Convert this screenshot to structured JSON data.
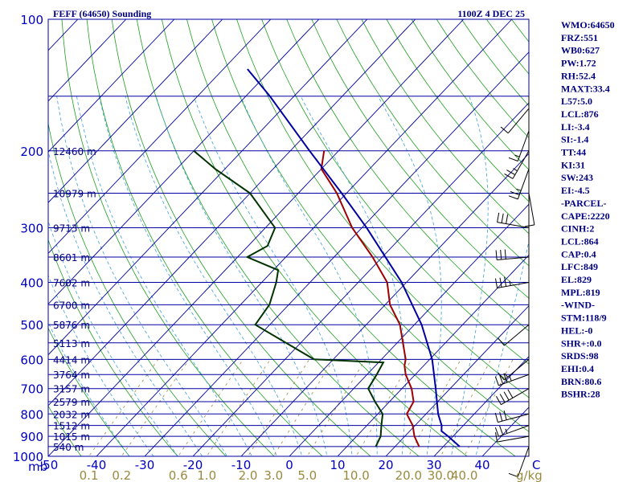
{
  "header": {
    "station": "FEFF (64650) Sounding",
    "time": "1100Z  4 DEC 25"
  },
  "indices": [
    "WMO:64650",
    "FRZ:551",
    "WB0:627",
    "PW:1.72",
    "RH:52.4",
    "MAXT:33.4",
    "L57:5.0",
    "LCL:876",
    "LI:-3.4",
    "SI:-1.4",
    "TT:44",
    "KI:31",
    "SW:243",
    "EI:-4.5",
    "-PARCEL-",
    "CAPE:2220",
    "CINH:2",
    "LCL:864",
    "CAP:0.4",
    "LFC:849",
    "EL:829",
    "MPL:819",
    "-WIND-",
    "STM:118/9",
    "HEL:-0",
    "SHR+:0.0",
    "SRDS:98",
    "EHI:0.4",
    "BRN:80.6",
    "BSHR:28"
  ],
  "chart_data": {
    "type": "line",
    "title": "FEFF (64650) Sounding",
    "pressure_axis": {
      "unit": "mb",
      "range": [
        1000,
        100
      ],
      "scale": "log",
      "labeled_levels": [
        100,
        200,
        300,
        400,
        500,
        600,
        700,
        800,
        900,
        1000
      ]
    },
    "temperature_axis": {
      "unit": "C",
      "ticks": [
        -50,
        -40,
        -30,
        -20,
        -10,
        0,
        10,
        20,
        30,
        40
      ]
    },
    "mixing_ratio_axis": {
      "unit": "g/kg",
      "ticks": [
        "0.1",
        "0.2",
        "0.6",
        "1.0",
        "2.0",
        "3.0",
        "5.0",
        "10.0",
        "20.0",
        "30.0",
        "40.0"
      ]
    },
    "height_labels": [
      {
        "p": 200,
        "label": "12460 m"
      },
      {
        "p": 250,
        "label": "10979 m"
      },
      {
        "p": 300,
        "label": "9713 m"
      },
      {
        "p": 350,
        "label": "8601 m"
      },
      {
        "p": 400,
        "label": "7602 m"
      },
      {
        "p": 450,
        "label": "6700 m"
      },
      {
        "p": 500,
        "label": "5876 m"
      },
      {
        "p": 550,
        "label": "5113 m"
      },
      {
        "p": 600,
        "label": "4414 m"
      },
      {
        "p": 650,
        "label": "3764 m"
      },
      {
        "p": 700,
        "label": "3157 m"
      },
      {
        "p": 750,
        "label": "2579 m"
      },
      {
        "p": 800,
        "label": "2032 m"
      },
      {
        "p": 850,
        "label": "1512 m"
      },
      {
        "p": 900,
        "label": "1015 m"
      },
      {
        "p": 950,
        "label": "540 m"
      }
    ],
    "series": [
      {
        "color": "#a00000",
        "points": [
          {
            "p": 950,
            "t": 25
          },
          {
            "p": 900,
            "t": 22
          },
          {
            "p": 850,
            "t": 19.5
          },
          {
            "p": 800,
            "t": 16
          },
          {
            "p": 750,
            "t": 15
          },
          {
            "p": 700,
            "t": 12
          },
          {
            "p": 650,
            "t": 8
          },
          {
            "p": 620,
            "t": 6
          },
          {
            "p": 600,
            "t": 5
          },
          {
            "p": 500,
            "t": -3
          },
          {
            "p": 450,
            "t": -9
          },
          {
            "p": 400,
            "t": -14
          },
          {
            "p": 350,
            "t": -22
          },
          {
            "p": 300,
            "t": -32
          },
          {
            "p": 250,
            "t": -42
          },
          {
            "p": 220,
            "t": -50
          },
          {
            "p": 200,
            "t": -53
          }
        ]
      },
      {
        "color": "#003300",
        "points": [
          {
            "p": 950,
            "t": 16
          },
          {
            "p": 900,
            "t": 15
          },
          {
            "p": 850,
            "t": 13
          },
          {
            "p": 800,
            "t": 11
          },
          {
            "p": 750,
            "t": 7
          },
          {
            "p": 700,
            "t": 3
          },
          {
            "p": 650,
            "t": 2
          },
          {
            "p": 610,
            "t": 1
          },
          {
            "p": 600,
            "t": -14
          },
          {
            "p": 500,
            "t": -33
          },
          {
            "p": 450,
            "t": -34
          },
          {
            "p": 400,
            "t": -37
          },
          {
            "p": 375,
            "t": -39
          },
          {
            "p": 350,
            "t": -48
          },
          {
            "p": 330,
            "t": -46
          },
          {
            "p": 300,
            "t": -48
          },
          {
            "p": 250,
            "t": -60
          },
          {
            "p": 220,
            "t": -72
          },
          {
            "p": 200,
            "t": -80
          }
        ]
      },
      {
        "color": "#0000a0",
        "points": [
          {
            "p": 950,
            "t": 33.4
          },
          {
            "p": 900,
            "t": 29
          },
          {
            "p": 876,
            "t": 26.6
          },
          {
            "p": 850,
            "t": 25.5
          },
          {
            "p": 800,
            "t": 22.5
          },
          {
            "p": 700,
            "t": 17
          },
          {
            "p": 600,
            "t": 10.5
          },
          {
            "p": 500,
            "t": 1.5
          },
          {
            "p": 400,
            "t": -11
          },
          {
            "p": 300,
            "t": -29
          },
          {
            "p": 250,
            "t": -41
          },
          {
            "p": 200,
            "t": -56
          },
          {
            "p": 150,
            "t": -75
          },
          {
            "p": 130,
            "t": -85
          }
        ]
      }
    ],
    "wind_profile": [
      {
        "p": 950,
        "dir": 200,
        "kt": 10
      },
      {
        "p": 900,
        "dir": 260,
        "kt": 10
      },
      {
        "p": 850,
        "dir": 250,
        "kt": 25
      },
      {
        "p": 800,
        "dir": 255,
        "kt": 30
      },
      {
        "p": 700,
        "dir": 240,
        "kt": 40
      },
      {
        "p": 650,
        "dir": 250,
        "kt": 35
      },
      {
        "p": 600,
        "dir": 230,
        "kt": 15
      },
      {
        "p": 500,
        "dir": 230,
        "kt": 10
      },
      {
        "p": 400,
        "dir": 260,
        "kt": 35
      },
      {
        "p": 350,
        "dir": 265,
        "kt": 30
      },
      {
        "p": 300,
        "dir": 280,
        "kt": 30
      },
      {
        "p": 250,
        "dir": 170,
        "kt": 10
      },
      {
        "p": 220,
        "dir": 200,
        "kt": 25
      },
      {
        "p": 200,
        "dir": 210,
        "kt": 25
      },
      {
        "p": 180,
        "dir": 200,
        "kt": 15
      },
      {
        "p": 160,
        "dir": 220,
        "kt": 10
      }
    ]
  }
}
